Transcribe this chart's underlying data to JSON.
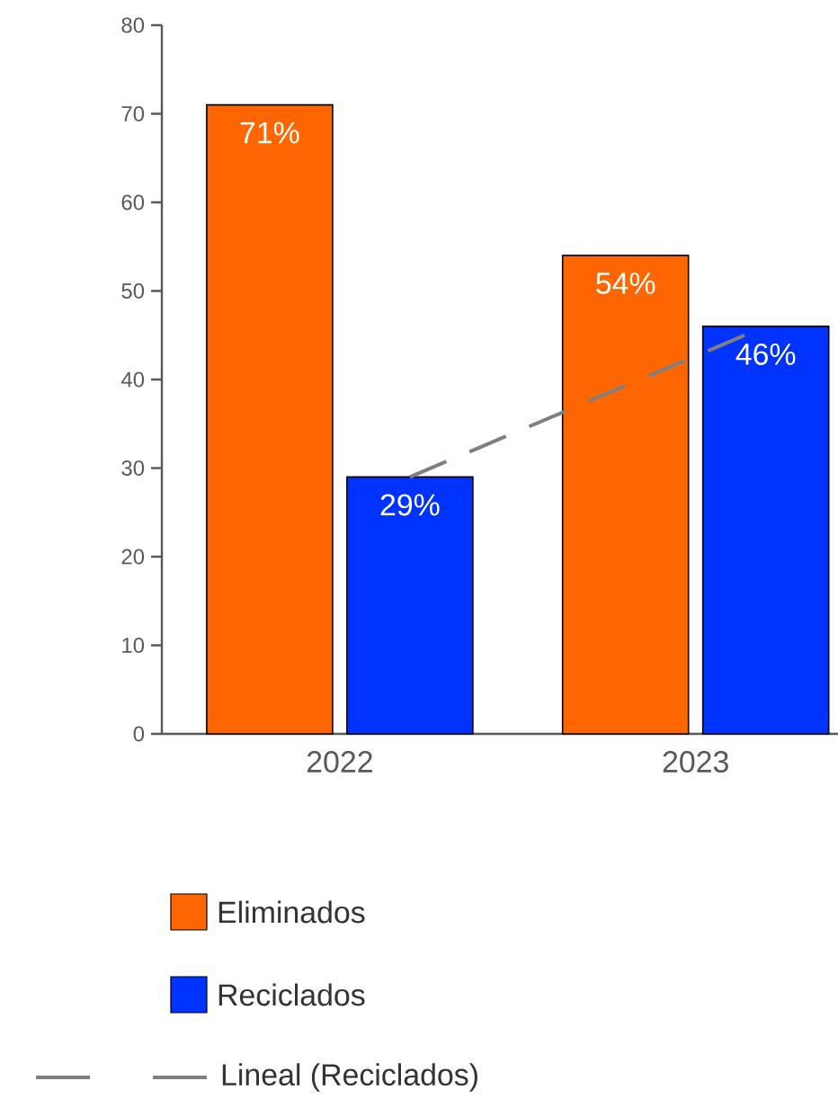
{
  "chart_data": {
    "type": "bar",
    "categories": [
      "2022",
      "2023"
    ],
    "series": [
      {
        "name": "Eliminados",
        "color": "#ff6600",
        "values": [
          71,
          54
        ],
        "value_labels": [
          "71%",
          "54%"
        ]
      },
      {
        "name": "Reciclados",
        "color": "#0033ff",
        "values": [
          29,
          46
        ],
        "value_labels": [
          "29%",
          "46%"
        ]
      },
      {
        "name": "Lineal (Reciclados)",
        "type": "line",
        "line_style": "dashed",
        "color": "#7f7f7f",
        "values": [
          29,
          46
        ]
      }
    ],
    "ylim": [
      0,
      80
    ],
    "yticks": [
      0,
      10,
      20,
      30,
      40,
      50,
      60,
      70,
      80
    ],
    "grid": false,
    "legend": "bottom"
  }
}
